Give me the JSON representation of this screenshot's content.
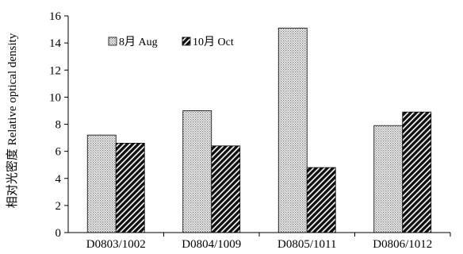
{
  "chart_data": {
    "type": "bar",
    "title": "",
    "xlabel": "",
    "ylabel": "相对光密度 Relative optical density",
    "ylim": [
      0,
      16
    ],
    "yticks": [
      0,
      2,
      4,
      6,
      8,
      10,
      12,
      14,
      16
    ],
    "grid": false,
    "legend_position": "top-left",
    "categories": [
      "D0803/1002",
      "D0804/1009",
      "D0805/1011",
      "D0806/1012"
    ],
    "series": [
      {
        "name": "8月 Aug",
        "values": [
          7.2,
          9.0,
          15.1,
          7.9
        ],
        "pattern": "dotted",
        "color": "#c8c8c8"
      },
      {
        "name": "10月 Oct",
        "values": [
          6.6,
          6.4,
          4.8,
          8.9
        ],
        "pattern": "diagonal-stripes",
        "color": "#111111"
      }
    ]
  }
}
